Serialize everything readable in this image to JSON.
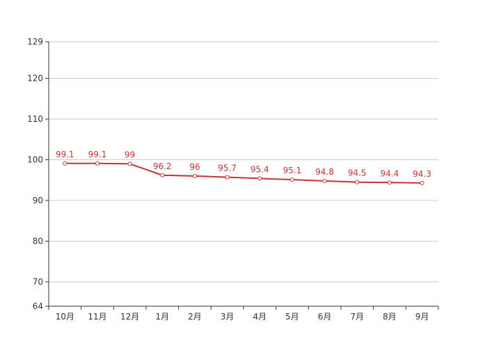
{
  "chart_data": {
    "type": "line",
    "categories": [
      "10月",
      "11月",
      "12月",
      "1月",
      "2月",
      "3月",
      "4月",
      "5月",
      "6月",
      "7月",
      "8月",
      "9月"
    ],
    "series": [
      {
        "values": [
          99.1,
          99.1,
          99,
          96.2,
          96,
          95.7,
          95.4,
          95.1,
          94.8,
          94.5,
          94.4,
          94.3
        ],
        "color": "#c23531"
      }
    ],
    "data_labels": [
      "99.1",
      "99.1",
      "99",
      "96.2",
      "96",
      "95.7",
      "95.4",
      "95.1",
      "94.8",
      "94.5",
      "94.4",
      "94.3"
    ],
    "y_ticks": [
      64,
      70,
      80,
      90,
      100,
      110,
      120,
      129
    ],
    "ylim": [
      64,
      129
    ],
    "grid": true,
    "title": "",
    "xlabel": "",
    "ylabel": ""
  }
}
